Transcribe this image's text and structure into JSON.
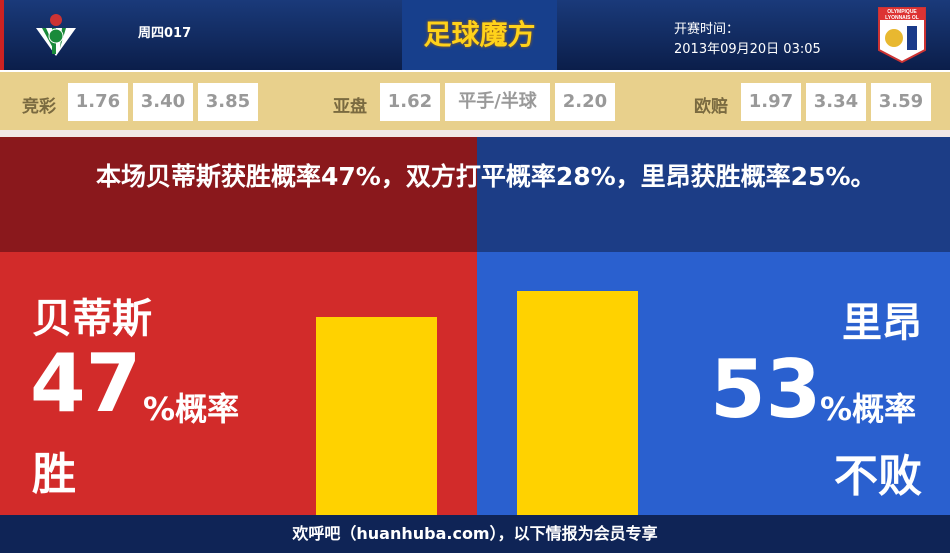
{
  "header": {
    "match_no": "周四017",
    "brand": "足球魔方",
    "time_label": "开赛时间：",
    "time_value": "2013年09月20日 03:05",
    "home_logo": "real-betis-crest",
    "away_logo": "olympique-lyonnais-crest",
    "away_logo_text": "OLYMPIQUE LYONNAIS OL"
  },
  "odds": {
    "jingcai": {
      "label": "竞彩",
      "values": [
        "1.76",
        "3.40",
        "3.85"
      ]
    },
    "yapan": {
      "label": "亚盘",
      "values": [
        "1.62",
        "平手/半球",
        "2.20"
      ]
    },
    "oupei": {
      "label": "欧赔",
      "values": [
        "1.97",
        "3.34",
        "3.59"
      ]
    }
  },
  "summary": "本场贝蒂斯获胜概率47%，双方打平概率28%，里昂获胜概率25%。",
  "home": {
    "team": "贝蒂斯",
    "pct": "47",
    "pct_suffix": "%概率",
    "outcome": "胜",
    "bar_value": 47
  },
  "away": {
    "team": "里昂",
    "pct": "53",
    "pct_suffix": "%概率",
    "outcome": "不败",
    "bar_value": 53
  },
  "colors": {
    "home": "#d22b2a",
    "away": "#2a60cf",
    "bar": "#ffd200"
  },
  "footer": "欢呼吧（huanhuba.com），以下情报为会员专享"
}
